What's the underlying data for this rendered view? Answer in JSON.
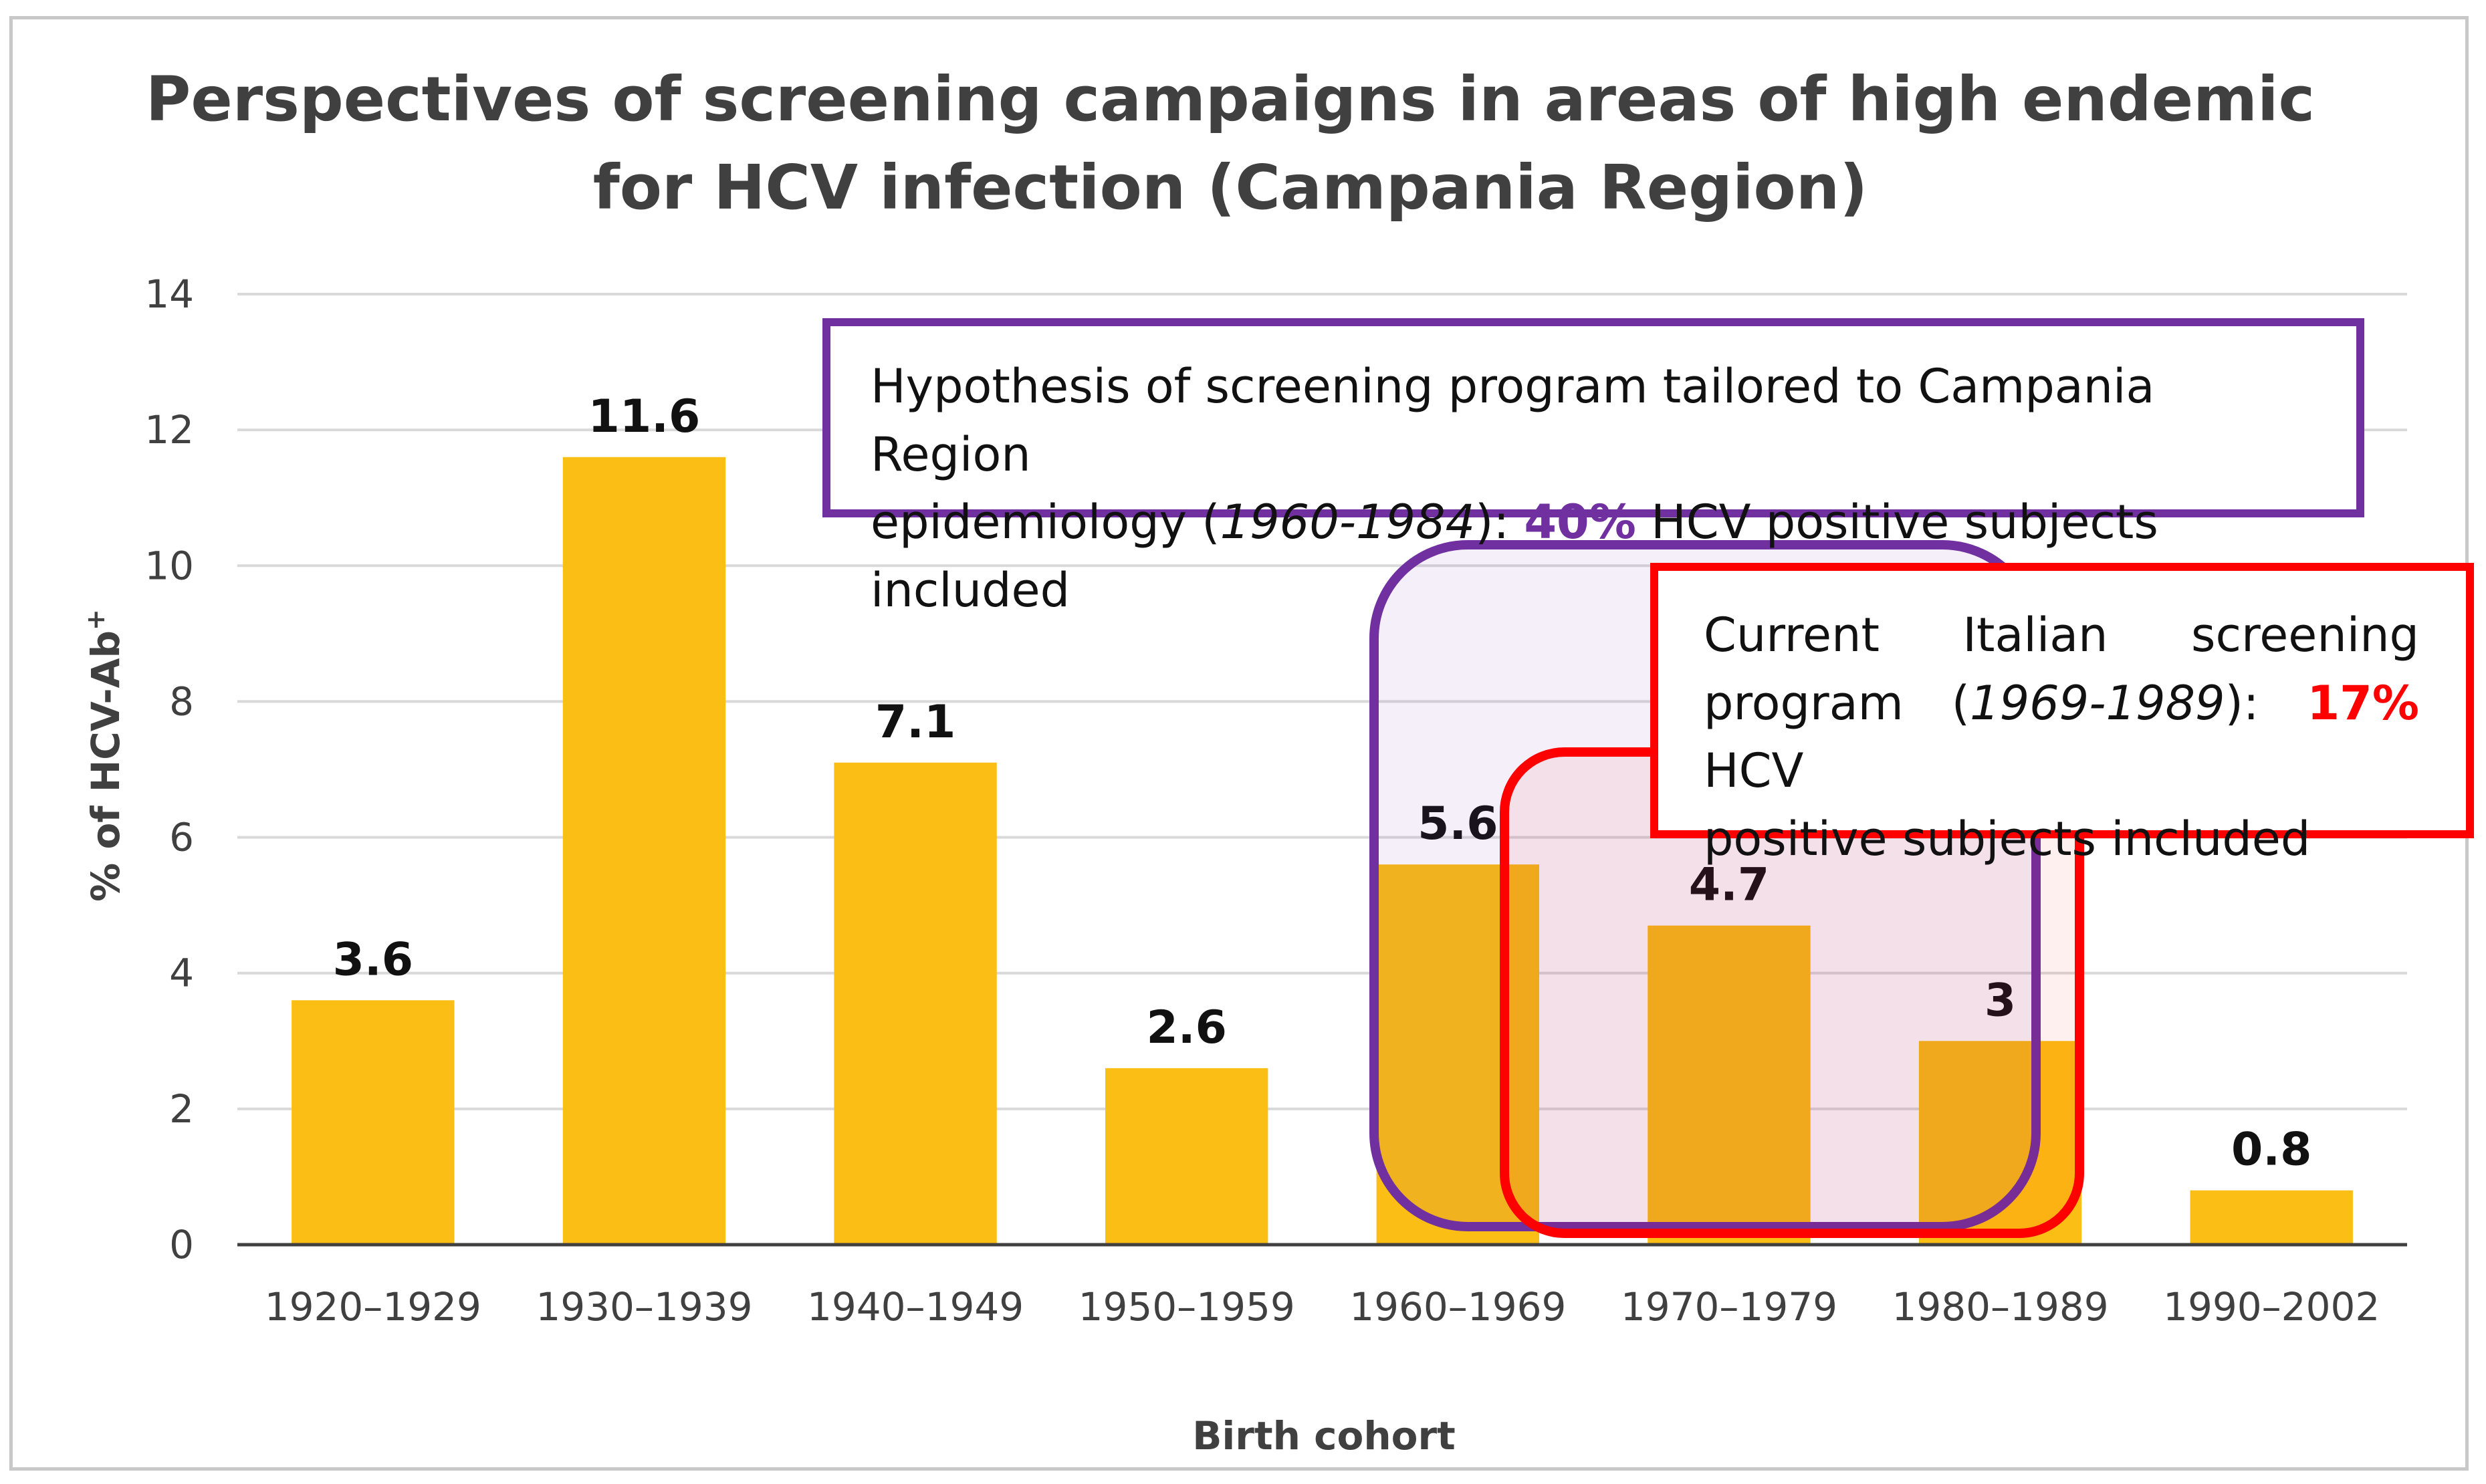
{
  "chart_data": {
    "type": "bar",
    "title_lines": [
      "Perspectives of screening campaigns in areas of high endemic",
      "for HCV infection (Campania Region)"
    ],
    "xlabel": "Birth cohort",
    "ylabel": "% of HCV-Ab",
    "ylabel_sup": "+",
    "ylim": [
      0,
      14
    ],
    "yticks": [
      "0",
      "2",
      "4",
      "6",
      "8",
      "10",
      "12",
      "14"
    ],
    "grid": true,
    "categories": [
      "1920–1929",
      "1930–1939",
      "1940–1949",
      "1950–1959",
      "1960–1969",
      "1970–1979",
      "1980–1989",
      "1990–2002"
    ],
    "values": [
      3.6,
      11.6,
      7.1,
      2.6,
      5.6,
      4.7,
      3,
      0.8
    ],
    "value_labels": [
      "3.6",
      "11.6",
      "7.1",
      "2.6",
      "5.6",
      "4.7",
      "3",
      "0.8"
    ],
    "bar_color": "#fbbe14",
    "annotations": {
      "purple": {
        "color": "#7030a0",
        "line1": "Hypothesis of screening program tailored to Campania Region",
        "line2_a": "epidemiology (",
        "line2_years": "1960-1984",
        "line2_b": "): ",
        "pct": "40%",
        "line2_c": " HCV positive subjects included"
      },
      "red": {
        "color": "#ff0000",
        "w1": "Current",
        "w2": "Italian",
        "w3": "screening",
        "line2_a": "program (",
        "line2_years": "1969-1989",
        "line2_b": "): ",
        "pct": "17%",
        "line2_c": " HCV",
        "line3": "positive subjects included"
      }
    }
  }
}
